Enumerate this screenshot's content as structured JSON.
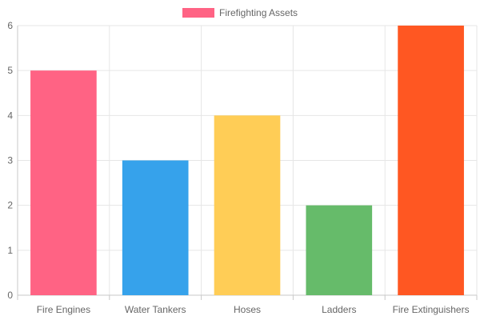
{
  "chart_data": {
    "type": "bar",
    "categories": [
      "Fire Engines",
      "Water Tankers",
      "Hoses",
      "Ladders",
      "Fire Extinguishers"
    ],
    "series": [
      {
        "name": "Firefighting Assets",
        "values": [
          5,
          3,
          4,
          2,
          6
        ]
      }
    ],
    "colors": [
      "#ff6384",
      "#36a2eb",
      "#ffcd56",
      "#66bb6a",
      "#ff5722"
    ],
    "legend": {
      "label": "Firefighting Assets",
      "color": "#ff6384",
      "position": "top"
    },
    "ylim": [
      0,
      6
    ],
    "yticks": [
      0,
      1,
      2,
      3,
      4,
      5,
      6
    ],
    "grid": true,
    "title": "",
    "xlabel": "",
    "ylabel": ""
  }
}
